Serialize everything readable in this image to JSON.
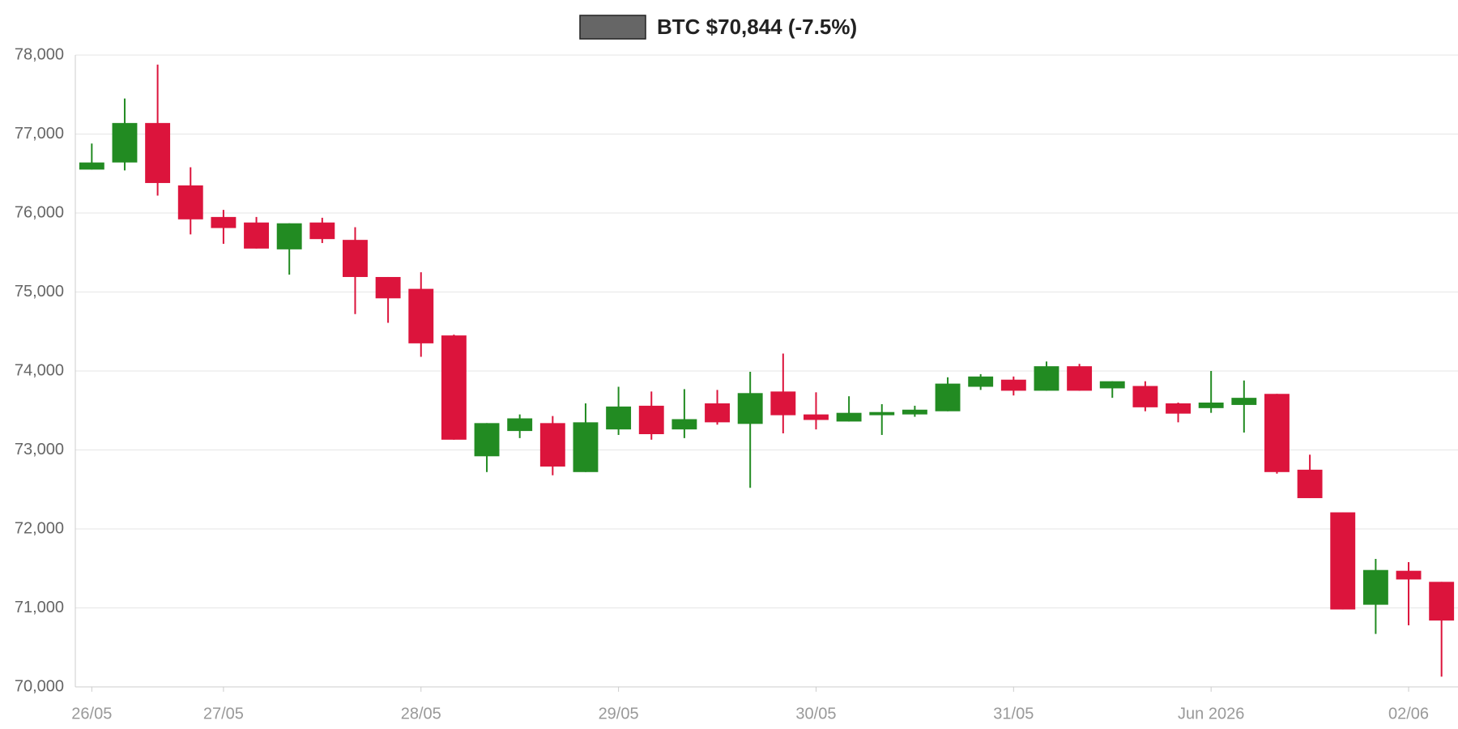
{
  "chart_data": {
    "type": "candlestick",
    "grid": true,
    "series": [
      {
        "name": "BTC $70,844 (-7.5%)",
        "color": "#666666",
        "up_color": "#228b22",
        "down_color": "#dc143c",
        "x": [
          0,
          1,
          2,
          3,
          4,
          5,
          6,
          7,
          8,
          9,
          10,
          11,
          12,
          13,
          14,
          15,
          16,
          17,
          18,
          19,
          20,
          21,
          22,
          23,
          24,
          25,
          26,
          27,
          28,
          29,
          30,
          31,
          32,
          33,
          34,
          35,
          36,
          37,
          38,
          39,
          40,
          41
        ],
        "open": [
          76550,
          76640,
          77140,
          76350,
          75950,
          75880,
          75540,
          75880,
          75660,
          75190,
          75040,
          74450,
          72920,
          73240,
          73340,
          72720,
          73260,
          73560,
          73260,
          73590,
          73330,
          73740,
          73450,
          73360,
          73440,
          73450,
          73490,
          73800,
          73890,
          73750,
          74060,
          73780,
          73810,
          73590,
          73530,
          73570,
          73710,
          72750,
          72210,
          71040,
          71470,
          71330
        ],
        "high": [
          76880,
          77450,
          77880,
          76580,
          76040,
          75950,
          75870,
          75940,
          75820,
          75190,
          75250,
          74460,
          73340,
          73450,
          73430,
          73590,
          73800,
          73740,
          73770,
          73760,
          73990,
          74220,
          73730,
          73680,
          73580,
          73560,
          73920,
          73960,
          73930,
          74120,
          74090,
          73870,
          73870,
          73600,
          74000,
          73880,
          73710,
          72940,
          72210,
          71620,
          71580,
          71330
        ],
        "low": [
          76550,
          76540,
          76220,
          75730,
          75610,
          75550,
          75220,
          75620,
          74720,
          74610,
          74180,
          73130,
          72720,
          73150,
          72680,
          72720,
          73190,
          73130,
          73150,
          73320,
          72520,
          73210,
          73260,
          73360,
          73190,
          73420,
          73490,
          73760,
          73690,
          73750,
          73750,
          73660,
          73490,
          73350,
          73470,
          73220,
          72700,
          72390,
          70980,
          70670,
          70780,
          70130
        ],
        "close": [
          76640,
          77140,
          76380,
          75920,
          75810,
          75550,
          75870,
          75670,
          75190,
          74920,
          74350,
          73130,
          73340,
          73400,
          72790,
          73350,
          73550,
          73200,
          73390,
          73350,
          73720,
          73440,
          73380,
          73470,
          73480,
          73510,
          73840,
          73930,
          73750,
          74060,
          73750,
          73870,
          73540,
          73460,
          73600,
          73660,
          72720,
          72390,
          70980,
          71480,
          71360,
          70840
        ]
      }
    ],
    "xlim": [
      -0.5,
      41.5
    ],
    "xticks": [
      {
        "value": 0,
        "label": "26/05"
      },
      {
        "value": 4,
        "label": "27/05"
      },
      {
        "value": 10,
        "label": "28/05"
      },
      {
        "value": 16,
        "label": "29/05"
      },
      {
        "value": 22,
        "label": "30/05"
      },
      {
        "value": 28,
        "label": "31/05"
      },
      {
        "value": 34,
        "label": "Jun 2026"
      },
      {
        "value": 40,
        "label": "02/06"
      }
    ],
    "ylim": [
      70000,
      78000
    ],
    "yticks": [
      {
        "value": 70000,
        "label": "70,000"
      },
      {
        "value": 71000,
        "label": "71,000"
      },
      {
        "value": 72000,
        "label": "72,000"
      },
      {
        "value": 73000,
        "label": "73,000"
      },
      {
        "value": 74000,
        "label": "74,000"
      },
      {
        "value": 75000,
        "label": "75,000"
      },
      {
        "value": 76000,
        "label": "76,000"
      },
      {
        "value": 77000,
        "label": "77,000"
      },
      {
        "value": 78000,
        "label": "78,000"
      }
    ]
  }
}
